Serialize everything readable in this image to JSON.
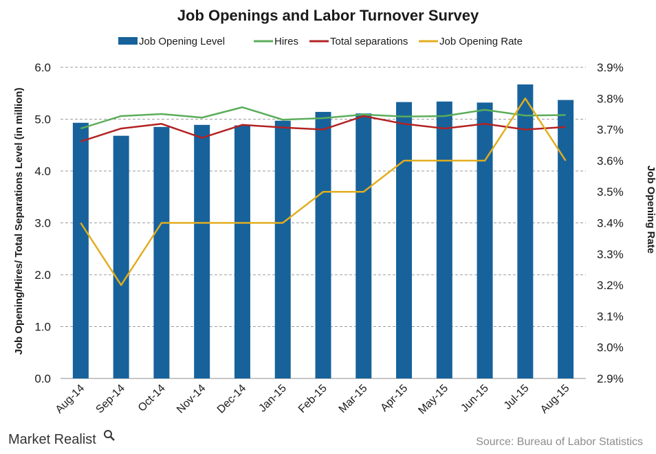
{
  "chart_data": {
    "type": "bar",
    "title": "Job Openings and Labor Turnover Survey",
    "categories": [
      "Aug-14",
      "Sep-14",
      "Oct-14",
      "Nov-14",
      "Dec-14",
      "Jan-15",
      "Feb-15",
      "Mar-15",
      "Apr-15",
      "May-15",
      "Jun-15",
      "Jul-15",
      "Aug-15"
    ],
    "ylabel": "Job Opening/Hires/ Total Separations Level (in million)",
    "ylabel_right": "Job Opening Rate",
    "ylim": [
      0,
      6
    ],
    "yticks": [
      "0.0",
      "1.0",
      "2.0",
      "3.0",
      "4.0",
      "5.0",
      "6.0"
    ],
    "ylim_right": [
      2.9,
      3.9
    ],
    "yticks_right": [
      "2.9%",
      "3.0%",
      "3.1%",
      "3.2%",
      "3.3%",
      "3.4%",
      "3.5%",
      "3.6%",
      "3.7%",
      "3.8%",
      "3.9%"
    ],
    "grid": true,
    "legend_position": "top",
    "series": [
      {
        "name": "Job Opening Level",
        "type": "bar",
        "axis": "left",
        "color": "#17629b",
        "values": [
          4.93,
          4.68,
          4.85,
          4.89,
          4.88,
          4.97,
          5.14,
          5.11,
          5.33,
          5.34,
          5.32,
          5.67,
          5.37
        ]
      },
      {
        "name": "Hires",
        "type": "line",
        "axis": "left",
        "color": "#5aad5a",
        "values": [
          4.82,
          5.06,
          5.1,
          5.03,
          5.23,
          4.99,
          5.02,
          5.09,
          5.05,
          5.06,
          5.18,
          5.07,
          5.08
        ]
      },
      {
        "name": "Total separations",
        "type": "line",
        "axis": "left",
        "color": "#b22222",
        "values": [
          4.57,
          4.82,
          4.91,
          4.64,
          4.89,
          4.84,
          4.8,
          5.06,
          4.91,
          4.82,
          4.91,
          4.8,
          4.85
        ]
      },
      {
        "name": "Job Opening Rate",
        "type": "line",
        "axis": "right",
        "color": "#e2ad1e",
        "values": [
          3.4,
          3.2,
          3.4,
          3.4,
          3.4,
          3.4,
          3.5,
          3.5,
          3.6,
          3.6,
          3.6,
          3.8,
          3.6
        ]
      }
    ]
  },
  "footer": {
    "brand": "Market Realist",
    "source": "Source:  Bureau of Labor Statistics"
  }
}
